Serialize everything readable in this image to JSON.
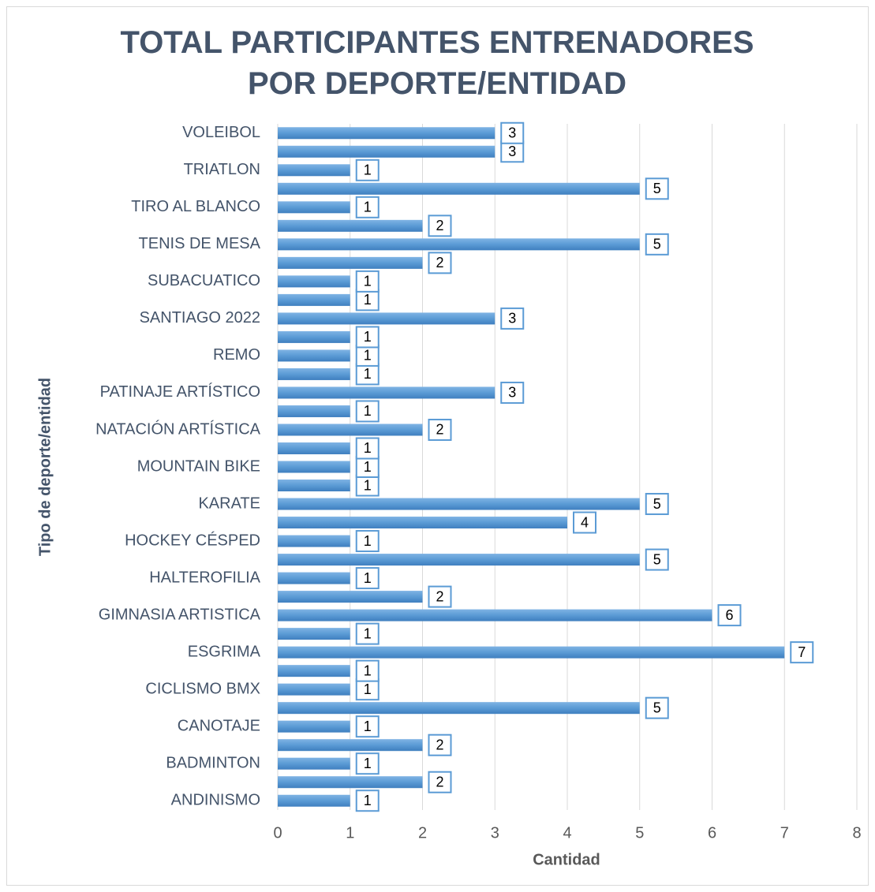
{
  "chart_data": {
    "type": "barh",
    "title": "TOTAL PARTICIPANTES ENTRENADORES POR DEPORTE/ENTIDAD",
    "x_label": "Cantidad",
    "y_label": "Tipo de deporte/entidad",
    "categories": [
      "ANDINISMO",
      null,
      "BADMINTON",
      null,
      "CANOTAJE",
      null,
      "CICLISMO BMX",
      null,
      "ESGRIMA",
      null,
      "GIMNASIA ARTISTICA",
      null,
      "HALTEROFILIA",
      null,
      "HOCKEY CÉSPED",
      null,
      "KARATE",
      null,
      "MOUNTAIN BIKE",
      null,
      "NATACIÓN ARTÍSTICA",
      null,
      "PATINAJE ARTÍSTICO",
      null,
      "REMO",
      null,
      "SANTIAGO 2022",
      null,
      "SUBACUATICO",
      null,
      "TENIS DE MESA",
      null,
      "TIRO AL BLANCO",
      null,
      "TRIATLON",
      null,
      "VOLEIBOL"
    ],
    "values": [
      1,
      2,
      1,
      2,
      1,
      5,
      1,
      1,
      7,
      1,
      6,
      2,
      1,
      5,
      1,
      4,
      5,
      1,
      1,
      1,
      2,
      1,
      3,
      1,
      1,
      1,
      3,
      1,
      1,
      2,
      5,
      2,
      1,
      5,
      1,
      3,
      3
    ],
    "color": "#5b9bd5",
    "xlim": [
      0,
      8
    ],
    "xticks": [
      0,
      1,
      2,
      3,
      4,
      5,
      6,
      7,
      8
    ],
    "grid": true
  }
}
